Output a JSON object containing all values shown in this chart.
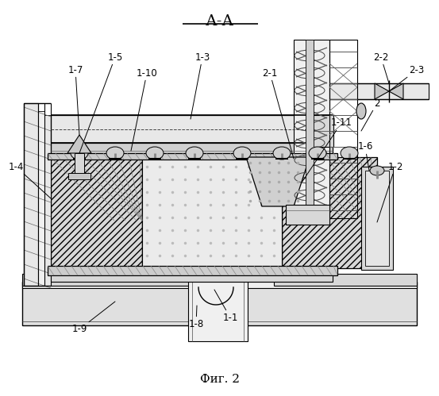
{
  "title": "А-А",
  "caption": "Фиг. 2",
  "bg_color": "#ffffff",
  "fig_width": 5.53,
  "fig_height": 4.99,
  "dpi": 100,
  "label_fontsize": 8.5,
  "caption_fontsize": 11,
  "title_fontsize": 14,
  "lc": "#000000",
  "gray1": "#e8e8e8",
  "gray2": "#d0d0d0",
  "gray3": "#c0c0c0",
  "gray4": "#b0b0b0",
  "hatch_gray": "#888888"
}
